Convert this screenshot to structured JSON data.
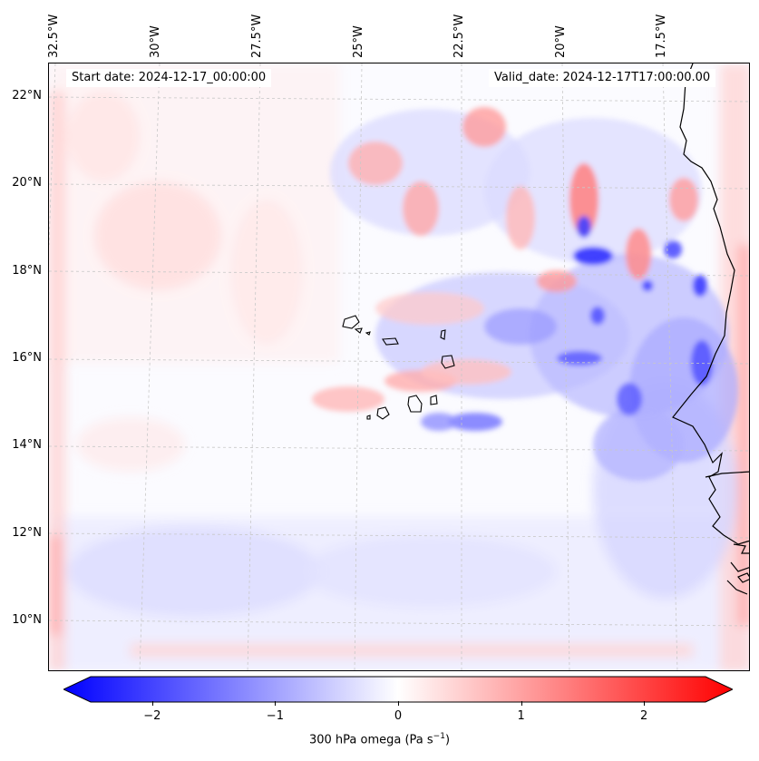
{
  "map": {
    "start_date": "Start date: 2024-12-17_00:00:00",
    "valid_date": "Valid_date: 2024-12-17T17:00:00.00",
    "longitude_labels": [
      "32.5°W",
      "30°W",
      "27.5°W",
      "25°W",
      "22.5°W",
      "20°W",
      "17.5°W"
    ],
    "latitude_labels": [
      "22°N",
      "20°N",
      "18°N",
      "16°N",
      "14°N",
      "12°N",
      "10°N"
    ],
    "variable": "300 hPa omega",
    "units": "(Pa s",
    "units_exp": "−1",
    "units_close": ")"
  },
  "colorbar": {
    "ticks": [
      "−2",
      "−1",
      "0",
      "1",
      "2"
    ],
    "tick_values": [
      -2,
      -1,
      0,
      1,
      2
    ],
    "range": [
      -2.5,
      2.5
    ],
    "colors": {
      "neg": "#0000ff",
      "mid": "#ffffff",
      "pos": "#ff0000"
    }
  }
}
